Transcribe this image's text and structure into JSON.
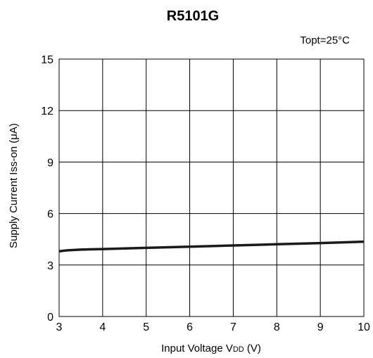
{
  "chart_data": {
    "type": "line",
    "title": "R5101G",
    "condition": "Topt=25°C",
    "xlabel": {
      "prefix": "Input Voltage V",
      "subscript": "DD",
      "suffix": " (V)"
    },
    "ylabel": "Supply Current Iss-on (μA)",
    "xlim": [
      3,
      10
    ],
    "ylim": [
      0,
      15
    ],
    "x_ticks": [
      3,
      4,
      5,
      6,
      7,
      8,
      9,
      10
    ],
    "y_ticks": [
      0,
      3,
      6,
      9,
      12,
      15
    ],
    "grid": true,
    "series": [
      {
        "x": [
          3.0,
          3.2,
          3.5,
          4.0,
          5.0,
          6.0,
          7.0,
          8.0,
          9.0,
          10.0
        ],
        "y": [
          3.8,
          3.86,
          3.9,
          3.93,
          4.0,
          4.07,
          4.14,
          4.21,
          4.28,
          4.36
        ]
      }
    ],
    "line_color": "#1a1a1a"
  }
}
